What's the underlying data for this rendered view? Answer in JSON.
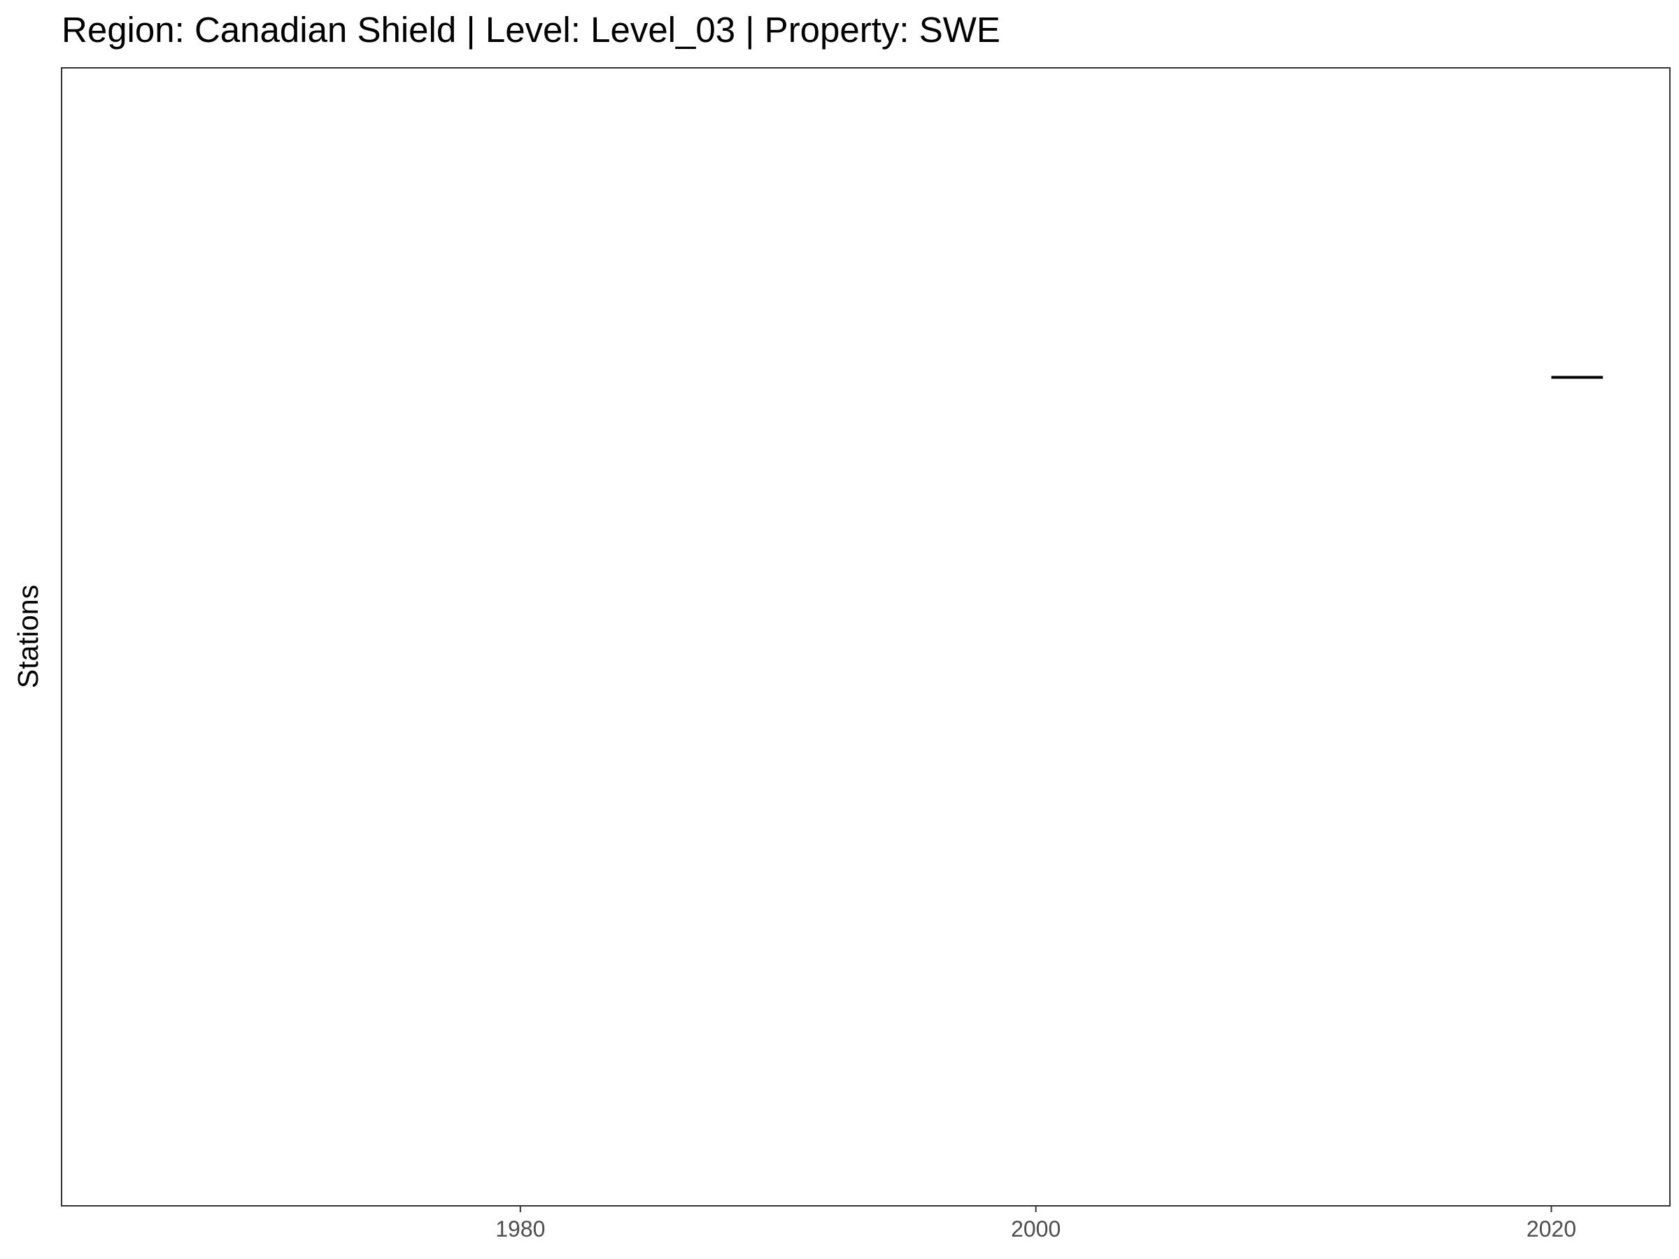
{
  "chart_data": {
    "type": "line",
    "title": "Region: Canadian Shield | Level: Level_03 | Property: SWE",
    "xlabel": "",
    "ylabel": "Stations",
    "xlim": [
      1962.2,
      2024.6
    ],
    "x_ticks": [
      1980,
      2000,
      2020
    ],
    "x_tick_labels": [
      "1980",
      "2000",
      "2020"
    ],
    "ylim": [
      0,
      1
    ],
    "y_ticks": [],
    "grid": false,
    "series": [
      {
        "segments": [
          {
            "x_start": 2020.0,
            "x_end": 2022.0,
            "y": 0.728
          }
        ],
        "color": "#000000"
      }
    ]
  }
}
